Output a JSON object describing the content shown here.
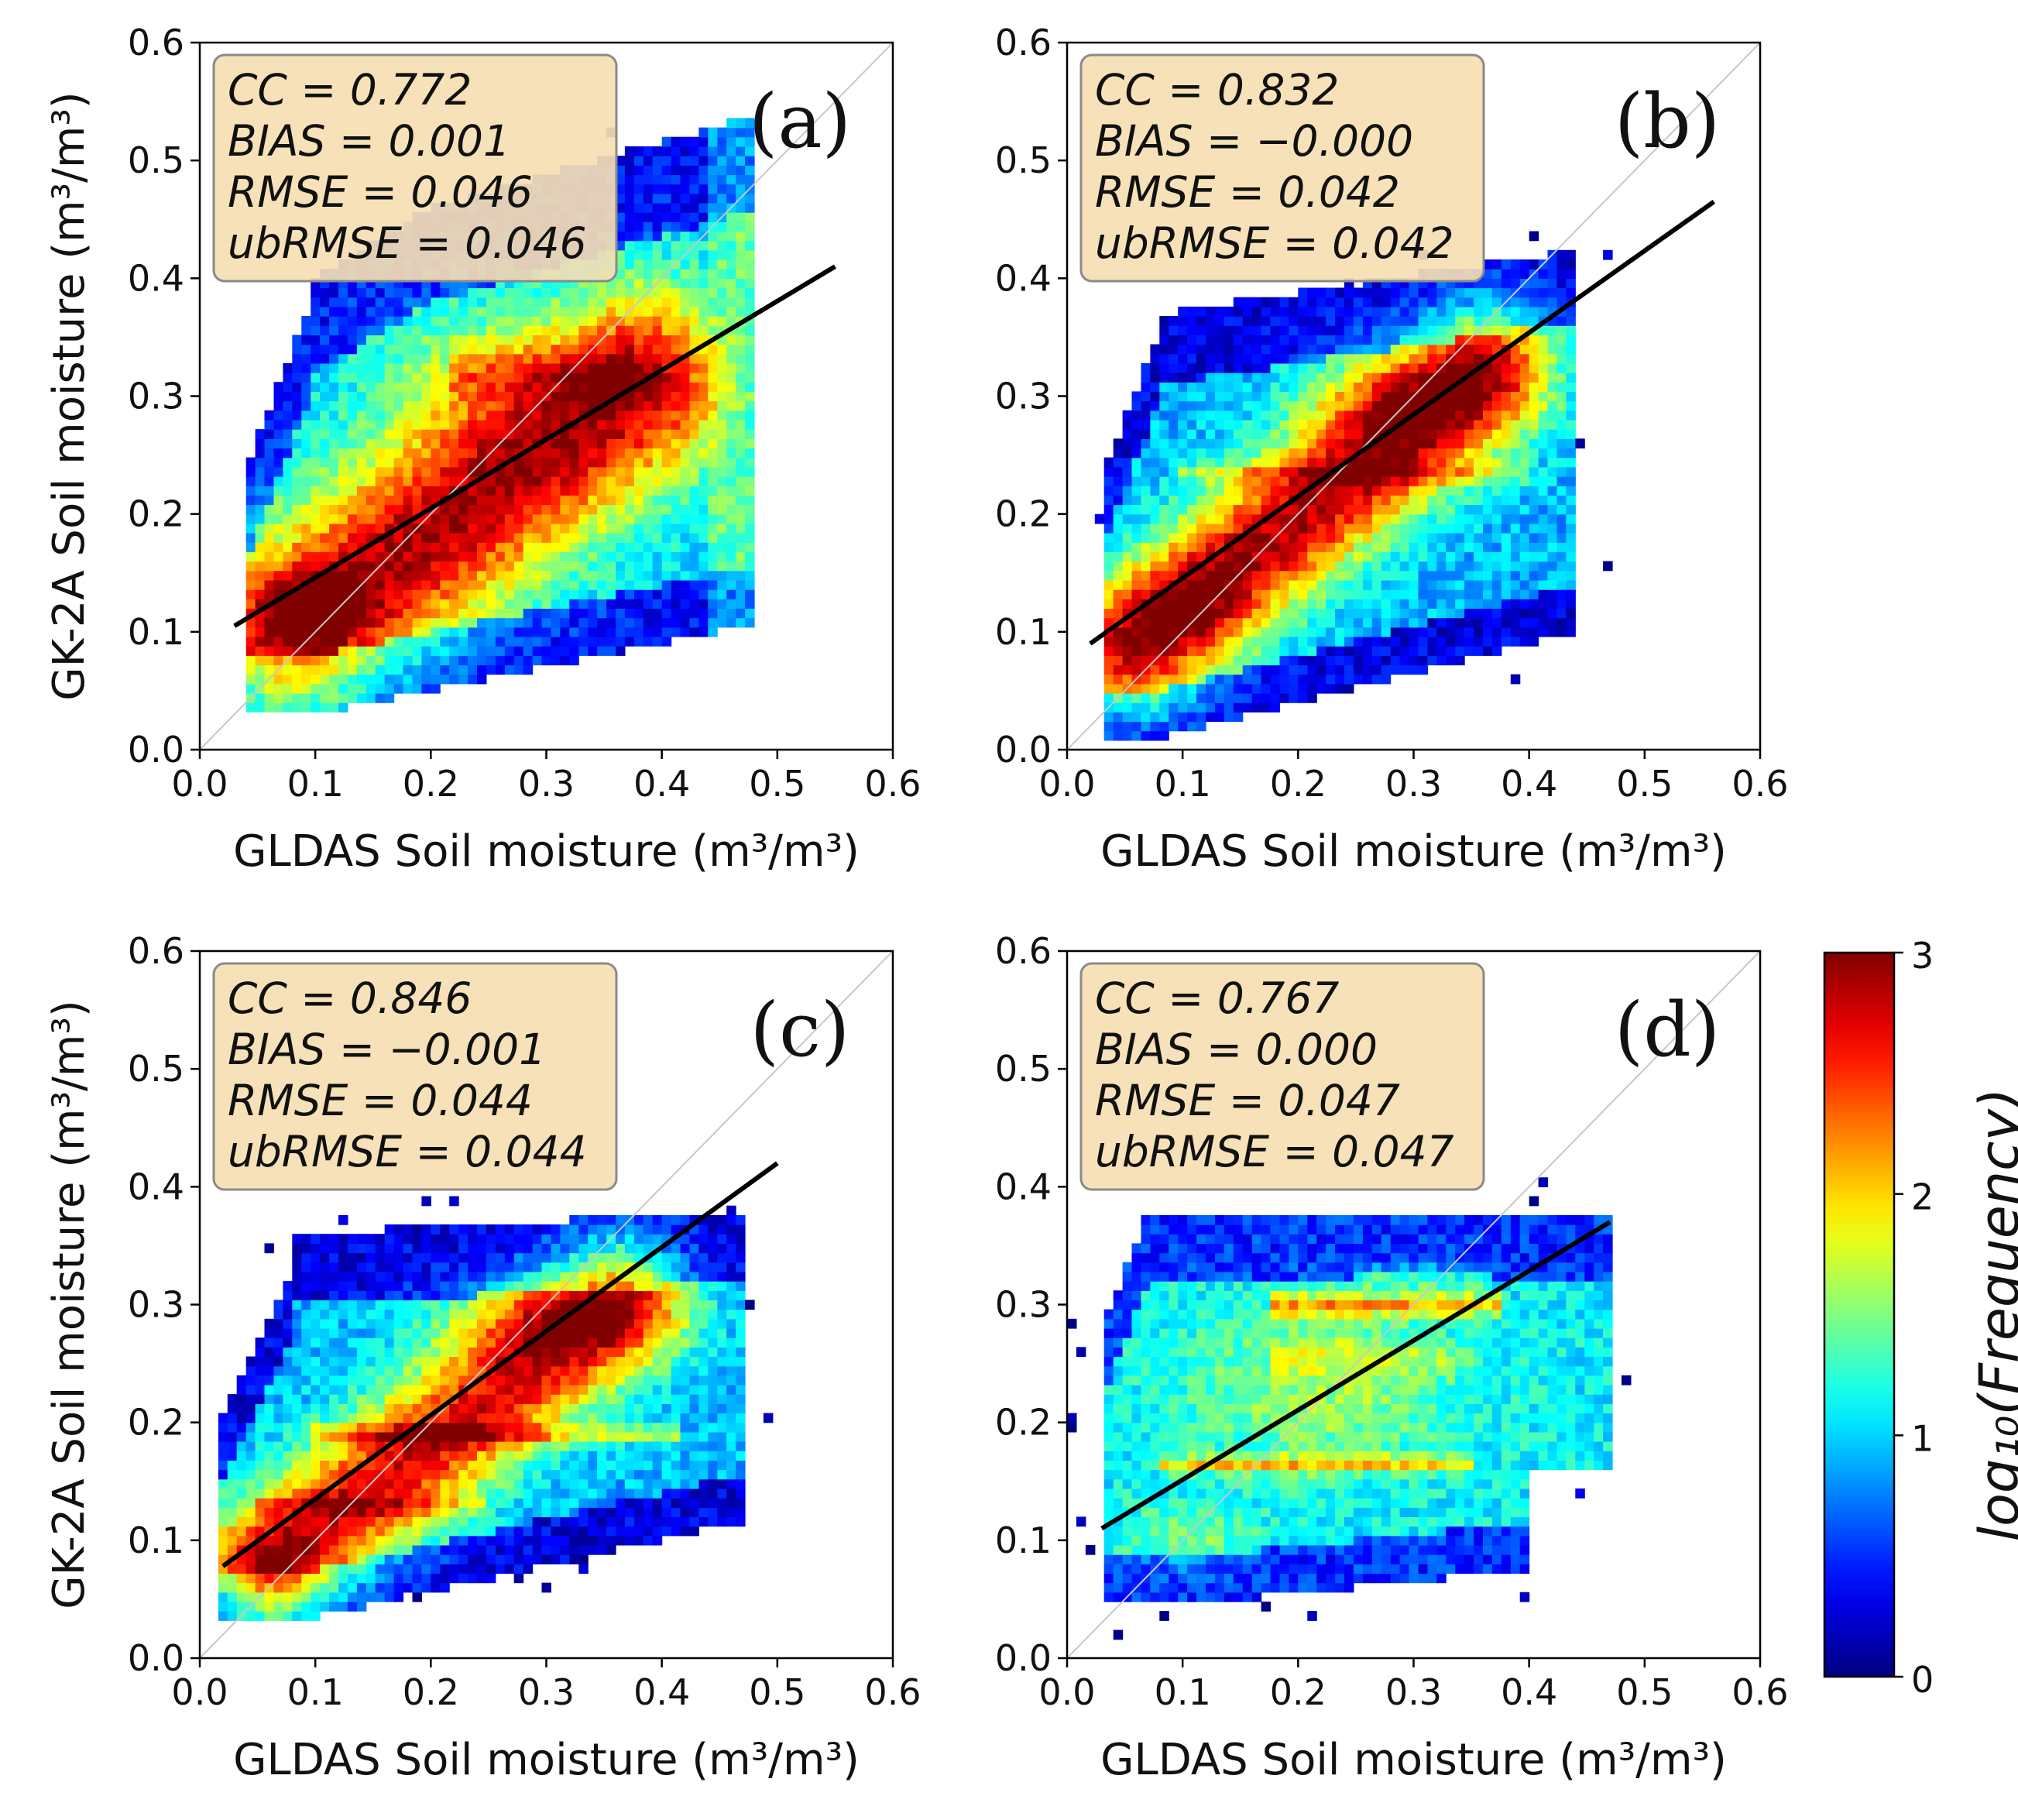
{
  "chart_data": [
    {
      "type": "heatmap",
      "panel_label": "(a)",
      "xlabel": "GLDAS Soil moisture (m³/m³)",
      "ylabel": "GK-2A Soil moisture (m³/m³)",
      "xlim": [
        0.0,
        0.6
      ],
      "ylim": [
        0.0,
        0.6
      ],
      "xticks": [
        "0.0",
        "0.1",
        "0.2",
        "0.3",
        "0.4",
        "0.5",
        "0.6"
      ],
      "yticks": [
        "0.0",
        "0.1",
        "0.2",
        "0.3",
        "0.4",
        "0.5",
        "0.6"
      ],
      "stats": [
        "CC = 0.772",
        "BIAS = 0.001",
        "RMSE = 0.046",
        "ubRMSE = 0.046"
      ],
      "regression_line": {
        "x": [
          0.03,
          0.55
        ],
        "y": [
          0.105,
          0.41
        ]
      },
      "one_to_one_line": true
    },
    {
      "type": "heatmap",
      "panel_label": "(b)",
      "xlabel": "GLDAS Soil moisture (m³/m³)",
      "ylabel": "",
      "xlim": [
        0.0,
        0.6
      ],
      "ylim": [
        0.0,
        0.6
      ],
      "xticks": [
        "0.0",
        "0.1",
        "0.2",
        "0.3",
        "0.4",
        "0.5",
        "0.6"
      ],
      "yticks": [
        "0.0",
        "0.1",
        "0.2",
        "0.3",
        "0.4",
        "0.5",
        "0.6"
      ],
      "stats": [
        "CC = 0.832",
        "BIAS = −0.000",
        "RMSE = 0.042",
        "ubRMSE = 0.042"
      ],
      "regression_line": {
        "x": [
          0.02,
          0.56
        ],
        "y": [
          0.09,
          0.465
        ]
      },
      "one_to_one_line": true
    },
    {
      "type": "heatmap",
      "panel_label": "(c)",
      "xlabel": "GLDAS Soil moisture (m³/m³)",
      "ylabel": "GK-2A Soil moisture (m³/m³)",
      "xlim": [
        0.0,
        0.6
      ],
      "ylim": [
        0.0,
        0.6
      ],
      "xticks": [
        "0.0",
        "0.1",
        "0.2",
        "0.3",
        "0.4",
        "0.5",
        "0.6"
      ],
      "yticks": [
        "0.0",
        "0.1",
        "0.2",
        "0.3",
        "0.4",
        "0.5",
        "0.6"
      ],
      "stats": [
        "CC = 0.846",
        "BIAS = −0.001",
        "RMSE = 0.044",
        "ubRMSE = 0.044"
      ],
      "regression_line": {
        "x": [
          0.02,
          0.5
        ],
        "y": [
          0.078,
          0.42
        ]
      },
      "one_to_one_line": true
    },
    {
      "type": "heatmap",
      "panel_label": "(d)",
      "xlabel": "GLDAS Soil moisture (m³/m³)",
      "ylabel": "",
      "xlim": [
        0.0,
        0.6
      ],
      "ylim": [
        0.0,
        0.6
      ],
      "xticks": [
        "0.0",
        "0.1",
        "0.2",
        "0.3",
        "0.4",
        "0.5",
        "0.6"
      ],
      "yticks": [
        "0.0",
        "0.1",
        "0.2",
        "0.3",
        "0.4",
        "0.5",
        "0.6"
      ],
      "stats": [
        "CC = 0.767",
        "BIAS = 0.000",
        "RMSE = 0.047",
        "ubRMSE = 0.047"
      ],
      "regression_line": {
        "x": [
          0.03,
          0.47
        ],
        "y": [
          0.11,
          0.37
        ]
      },
      "one_to_one_line": true
    }
  ],
  "colorbar": {
    "label": "log₁₀(Frequency)",
    "range": [
      0,
      3
    ],
    "ticks": [
      "0",
      "1",
      "2",
      "3"
    ],
    "colormap": "jet"
  },
  "colors": {
    "stat_box_fill": "#f5deb3",
    "stat_box_stroke": "#8a8a8a",
    "regression_line": "#000000",
    "one_to_one_line": "#c8c8c8"
  }
}
